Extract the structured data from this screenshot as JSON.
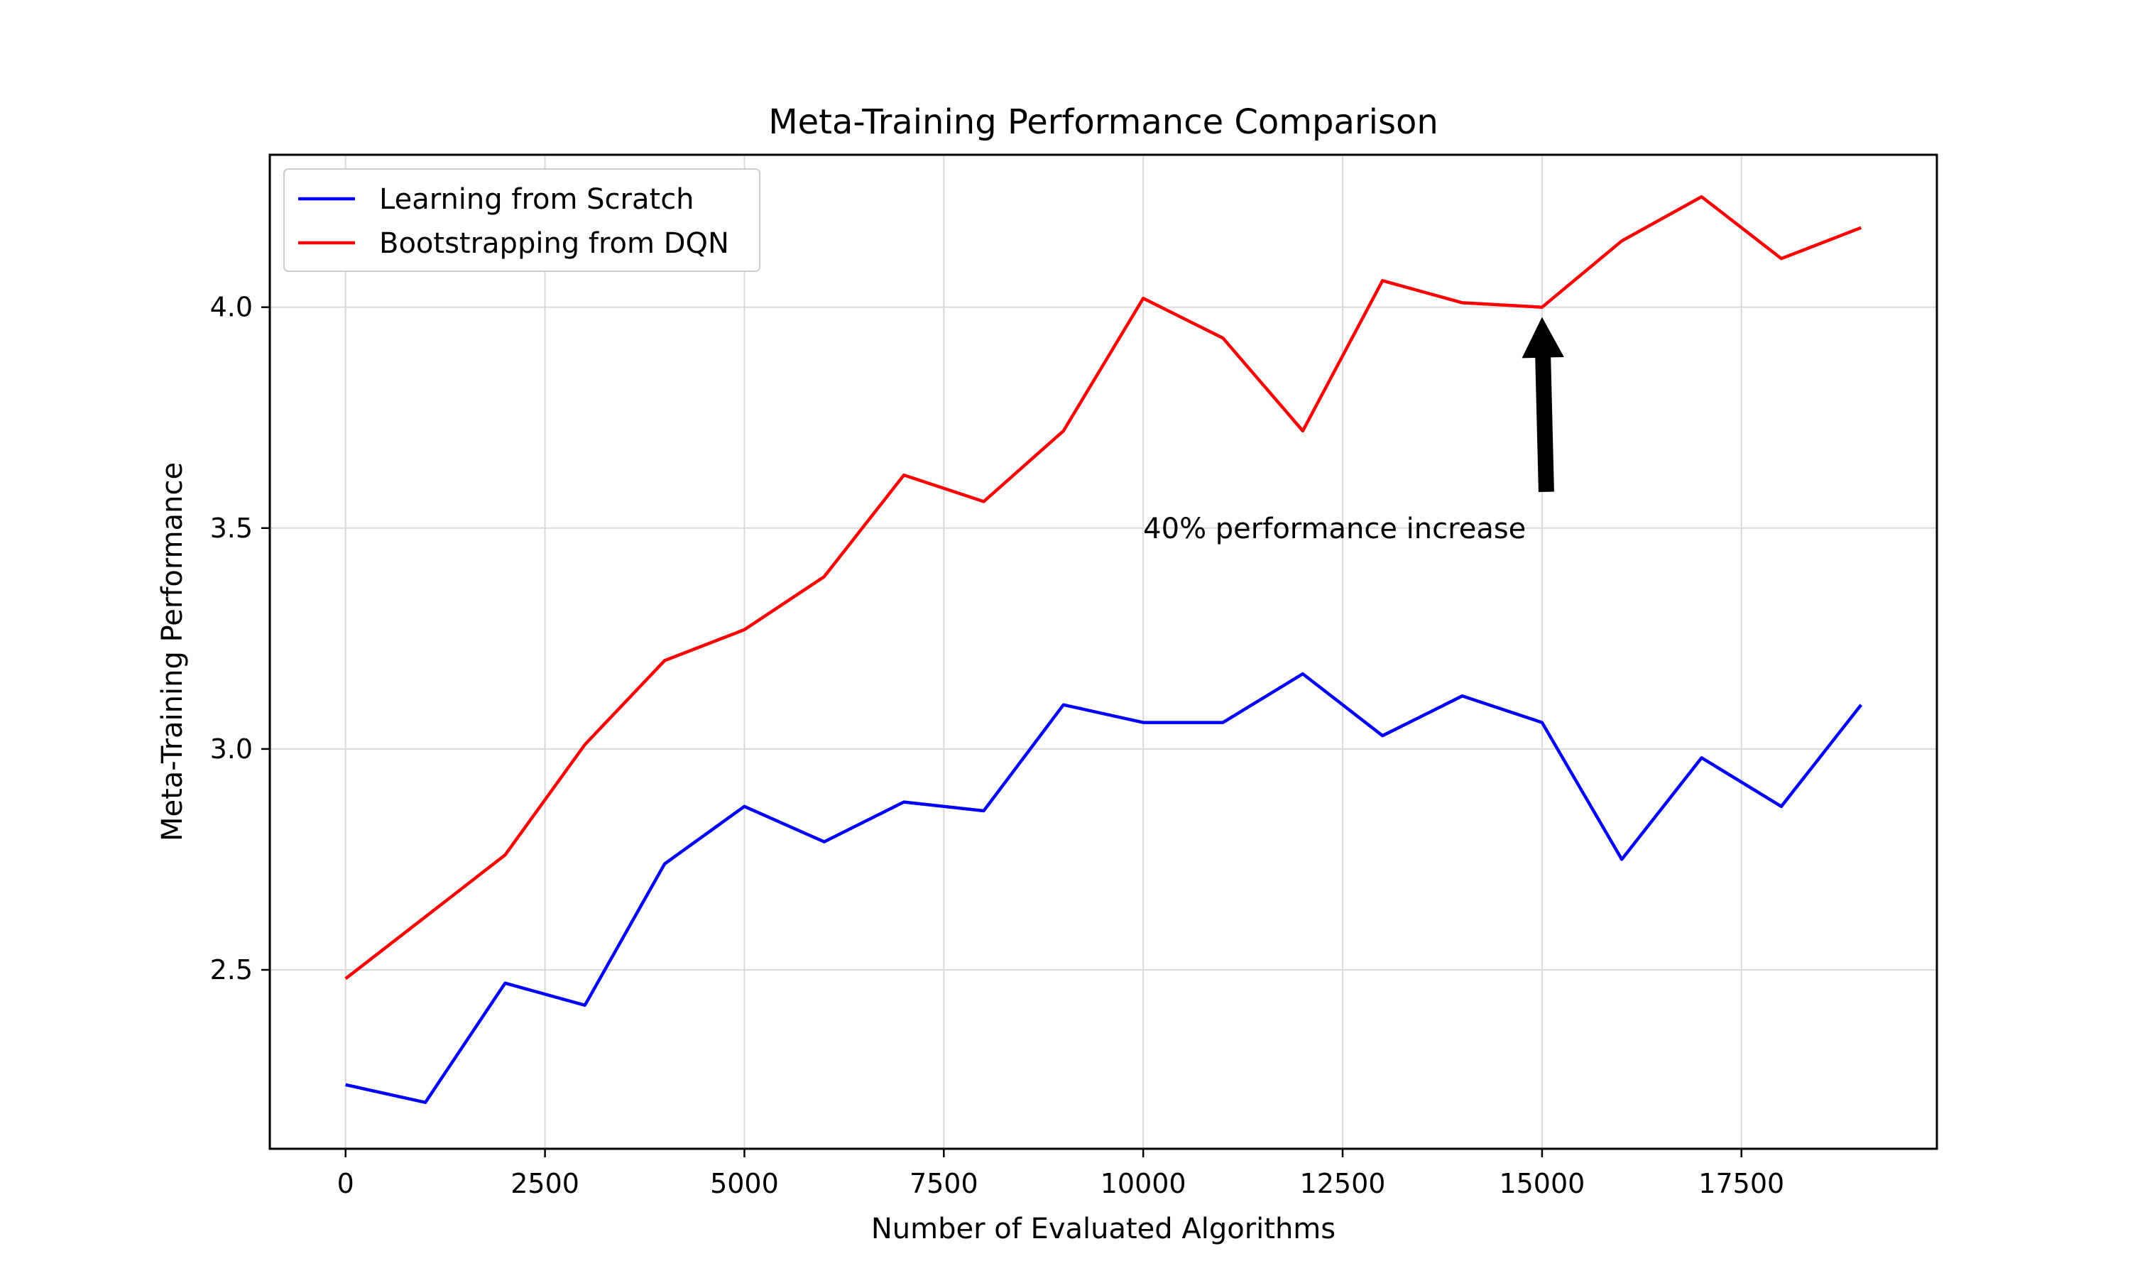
{
  "chart_data": {
    "type": "line",
    "title": "Meta-Training Performance Comparison",
    "xlabel": "Number of Evaluated Algorithms",
    "ylabel": "Meta-Training Performance",
    "xlim": [
      -950,
      19950
    ],
    "ylim": [
      2.095,
      4.345
    ],
    "xticks": [
      0,
      2500,
      5000,
      7500,
      10000,
      12500,
      15000,
      17500
    ],
    "xtick_labels": [
      "0",
      "2500",
      "5000",
      "7500",
      "10000",
      "12500",
      "15000",
      "17500"
    ],
    "yticks": [
      2.5,
      3.0,
      3.5,
      4.0
    ],
    "ytick_labels": [
      "2.5",
      "3.0",
      "3.5",
      "4.0"
    ],
    "grid": true,
    "legend_position": "upper-left",
    "x": [
      0,
      1000,
      2000,
      3000,
      4000,
      5000,
      6000,
      7000,
      8000,
      9000,
      10000,
      11000,
      12000,
      13000,
      14000,
      15000,
      16000,
      17000,
      18000,
      19000
    ],
    "series": [
      {
        "name": "Learning from Scratch",
        "color": "#0000ff",
        "values": [
          2.24,
          2.2,
          2.47,
          2.42,
          2.74,
          2.87,
          2.79,
          2.88,
          2.86,
          3.1,
          3.06,
          3.06,
          3.17,
          3.03,
          3.12,
          3.06,
          2.75,
          2.98,
          2.87,
          3.1
        ]
      },
      {
        "name": "Bootstrapping from DQN",
        "color": "#ff0000",
        "values": [
          2.48,
          2.62,
          2.76,
          3.01,
          3.2,
          3.27,
          3.39,
          3.62,
          3.56,
          3.72,
          4.02,
          3.93,
          3.72,
          4.06,
          4.01,
          4.0,
          4.15,
          4.25,
          4.11,
          4.18
        ]
      }
    ],
    "annotations": [
      {
        "text": "40% performance increase",
        "point": [
          15000,
          4.0
        ],
        "text_position": [
          10000,
          3.5
        ],
        "arrow": true,
        "arrow_color": "#000000"
      }
    ]
  }
}
